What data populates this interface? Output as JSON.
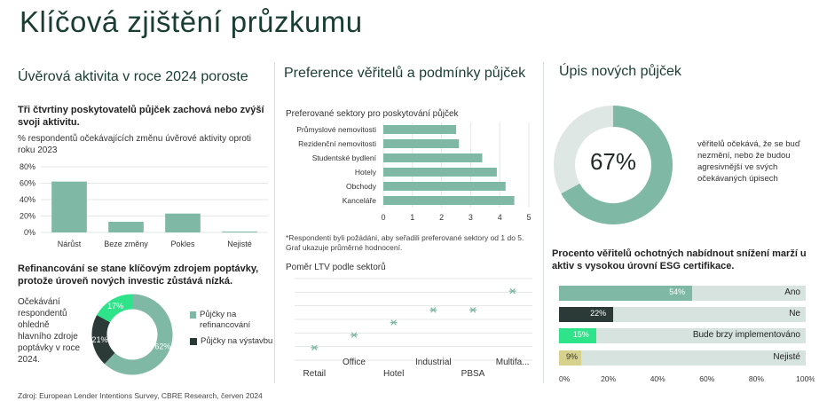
{
  "page_title": "Klíčová zjištění průzkumu",
  "source": "Zdroj: European Lender Intentions Survey, CBRE Research, červen 2024",
  "colors": {
    "green": "#7fb8a4",
    "dark": "#2b3a37",
    "bright": "#2ee38a",
    "khaki": "#d6d18c",
    "track": "#d7e3df"
  },
  "left": {
    "heading": "Úvěrová aktivita v roce 2024 poroste",
    "subheading": "Tři čtvrtiny poskytovatelů půjček zachová nebo zvýší svoji aktivitu.",
    "chart_caption": "% respondentů očekávajících změnu úvěrové aktivity oproti roku 2023",
    "refi_heading": "Refinancování se stane klíčovým zdrojem poptávky, protože úroveň nových investic zůstává nízká.",
    "donut_caption": "Očekávání respondentů ohledně hlavního zdroje poptávky v roce 2024."
  },
  "middle": {
    "heading": "Preference věřitelů a podmínky půjček",
    "sectors_caption": "Preferované sektory pro poskytování půjček",
    "footnote": "*Respondenti byli požádáni, aby seřadili preferované sektory od 1 do 5. Graf ukazuje průměrné hodnocení.",
    "ltv_caption": "Poměr LTV podle sektorů"
  },
  "right": {
    "heading": "Úpis nových půjček",
    "donut_value": "67%",
    "donut_text": "věřitelů očekává, že se buď nezmění, nebo že budou agresivnější ve svých očekávaných úpisech",
    "esg_heading": "Procento věřitelů ochotných nabídnout snížení marží u aktiv s vysokou úrovní ESG certifikace."
  },
  "chart_data": [
    {
      "id": "lending-activity",
      "type": "bar",
      "title": "% respondentů očekávajících změnu úvěrové aktivity oproti roku 2023",
      "categories": [
        "Nárůst",
        "Beze změny",
        "Pokles",
        "Nejisté"
      ],
      "values": [
        62,
        13,
        23,
        1
      ],
      "ylim": [
        0,
        80
      ],
      "yticks": [
        "0%",
        "20%",
        "40%",
        "60%",
        "80%"
      ],
      "grid": true
    },
    {
      "id": "demand-source",
      "type": "pie",
      "title": "Očekávání respondentů ohledně hlavního zdroje poptávky v roce 2024.",
      "series": [
        {
          "name": "Půjčky na refinancování",
          "value": 62,
          "label": "62%",
          "color": "#7fb8a4"
        },
        {
          "name": "Půjčky na výstavbu",
          "value": 21,
          "label": "21%",
          "color": "#2b3a37"
        },
        {
          "name": "",
          "value": 17,
          "label": "17%",
          "color": "#2ee38a"
        }
      ],
      "legend": "right"
    },
    {
      "id": "preferred-sectors",
      "type": "bar",
      "orientation": "horizontal",
      "title": "Preferované sektory pro poskytování půjček",
      "categories": [
        "Průmyslové nemovitosti",
        "Rezidenční nemovitosti",
        "Studentské bydlení",
        "Hotely",
        "Obchody",
        "Kanceláře"
      ],
      "values": [
        2.5,
        2.6,
        3.4,
        3.9,
        4.2,
        4.5
      ],
      "xlim": [
        0,
        5
      ],
      "xticks": [
        "0",
        "1",
        "2",
        "3",
        "4",
        "5"
      ],
      "grid": true
    },
    {
      "id": "ltv-by-sector",
      "type": "scatter",
      "title": "Poměr LTV podle sektorů",
      "categories": [
        "Retail",
        "Office",
        "Hotel",
        "Industrial",
        "PBSA",
        "Multifa..."
      ],
      "values": [
        1,
        2,
        3,
        4,
        4,
        5.5
      ],
      "ylim": [
        0,
        6.5
      ],
      "grid": true
    },
    {
      "id": "underwriting",
      "type": "pie",
      "title": "Úpis nových půjček",
      "series": [
        {
          "name": "",
          "value": 67,
          "label": "67%",
          "color": "#7fb8a4"
        },
        {
          "name": "",
          "value": 33,
          "color": "#dfe7e4"
        }
      ]
    },
    {
      "id": "esg-margins",
      "type": "bar",
      "orientation": "horizontal",
      "title": "Procento věřitelů ochotných nabídnout snížení marží u aktiv s vysokou úrovní ESG certifikace.",
      "categories": [
        "Ano",
        "Ne",
        "Bude brzy implementováno",
        "Nejisté"
      ],
      "values": [
        54,
        22,
        15,
        9
      ],
      "labels": [
        "54%",
        "22%",
        "15%",
        "9%"
      ],
      "colors": [
        "#7fb8a4",
        "#2b3a37",
        "#2ee38a",
        "#d6d18c"
      ],
      "xlim": [
        0,
        100
      ],
      "xticks": [
        "0%",
        "20%",
        "40%",
        "60%",
        "80%",
        "100%"
      ]
    }
  ]
}
